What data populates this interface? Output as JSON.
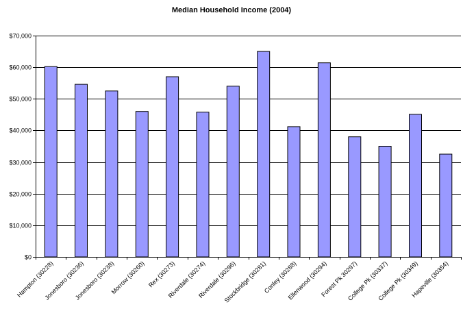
{
  "chart_data": {
    "type": "bar",
    "title": "Median Household Income (2004)",
    "xlabel": "",
    "ylabel": "",
    "categories": [
      "Hampton (30228)",
      "Jonesboro (30236)",
      "Jonesboro (30238)",
      "Morrow (30260)",
      "Rex (30273)",
      "Riverdale (30274)",
      "Riverdale (30296)",
      "Stockbridge (30281)",
      "Conley (30288)",
      "Ellenwood (30294)",
      "Forest Pk 30297)",
      "College Pk (30337)",
      "College Pk (30349)",
      "Hapeville (30354)"
    ],
    "values": [
      60200,
      54600,
      52500,
      46000,
      57000,
      45800,
      54000,
      65000,
      41200,
      61400,
      38000,
      35000,
      45100,
      32500
    ],
    "ylim": [
      0,
      70000
    ],
    "yticks": [
      0,
      10000,
      20000,
      30000,
      40000,
      50000,
      60000,
      70000
    ],
    "ytick_labels": [
      "$0",
      "$10,000",
      "$20,000",
      "$30,000",
      "$40,000",
      "$50,000",
      "$60,000",
      "$70,000"
    ],
    "grid": true,
    "bar_color": "#9999ff",
    "bar_stroke": "#000000"
  }
}
